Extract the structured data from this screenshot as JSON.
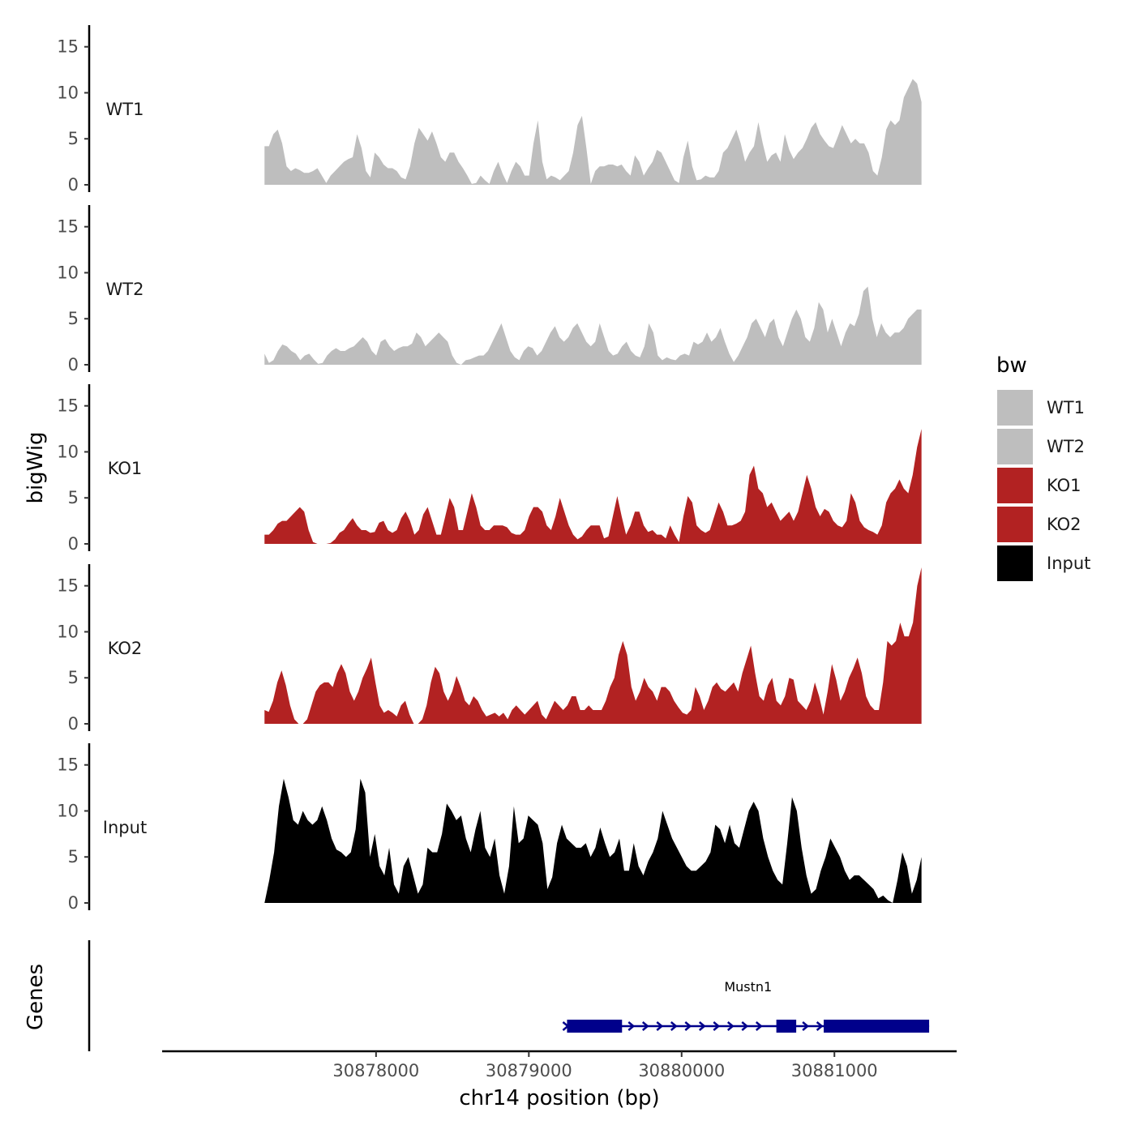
{
  "chart_data": {
    "type": "area",
    "x_axis": {
      "label": "chr14 position (bp)",
      "range": [
        30876600,
        30881800
      ],
      "ticks": [
        30878000,
        30879000,
        30880000,
        30881000
      ]
    },
    "y_axis": {
      "label": "bigWig",
      "range": [
        0,
        17
      ],
      "ticks": [
        0,
        5,
        10,
        15
      ]
    },
    "genes_label": "Genes",
    "x_data_start": 30877270,
    "x_data_end": 30881570,
    "legend": {
      "title": "bw",
      "entries": [
        {
          "name": "WT1",
          "color": "#bebebe"
        },
        {
          "name": "WT2",
          "color": "#bebebe"
        },
        {
          "name": "KO1",
          "color": "#b22222"
        },
        {
          "name": "KO2",
          "color": "#b22222"
        },
        {
          "name": "Input",
          "color": "#000000"
        }
      ]
    },
    "series": [
      {
        "name": "WT1",
        "color": "#bebebe",
        "values": [
          4.2,
          4.2,
          5.5,
          6,
          4.5,
          2,
          1.5,
          1.8,
          1.6,
          1.3,
          1.3,
          1.5,
          1.8,
          1,
          0.2,
          1,
          1.5,
          2,
          2.5,
          2.8,
          3,
          5.5,
          4,
          1.5,
          0.8,
          3.5,
          3,
          2.2,
          1.8,
          1.8,
          1.5,
          0.8,
          0.6,
          2,
          4.5,
          6.2,
          5.5,
          4.8,
          5.8,
          4.5,
          3,
          2.5,
          3.5,
          3.5,
          2.5,
          1.8,
          1,
          0.1,
          0.2,
          1,
          0.5,
          0.1,
          1.5,
          2.5,
          1.2,
          0.2,
          1.5,
          2.5,
          2,
          1,
          1,
          4.5,
          7,
          2.5,
          0.6,
          1,
          0.8,
          0.5,
          1,
          1.5,
          3.5,
          6.5,
          7.5,
          4,
          0.1,
          1.5,
          2,
          2,
          2.2,
          2.2,
          2,
          2.2,
          1.5,
          1,
          3.2,
          2.5,
          1,
          1.8,
          2.5,
          3.8,
          3.5,
          2.5,
          1.5,
          0.5,
          0.2,
          3,
          4.8,
          2,
          0.5,
          0.6,
          1,
          0.8,
          0.8,
          1.5,
          3.5,
          4,
          5,
          6,
          4.5,
          2.5,
          3.5,
          4.2,
          6.8,
          4.5,
          2.5,
          3.2,
          3.5,
          2.5,
          5.5,
          3.8,
          2.8,
          3.5,
          4,
          5,
          6.2,
          6.8,
          5.5,
          4.8,
          4.2,
          4,
          5.2,
          6.5,
          5.5,
          4.5,
          5,
          4.5,
          4.5,
          3.5,
          1.5,
          1,
          3,
          6,
          7,
          6.5,
          7,
          9.5,
          10.5,
          11.5,
          11,
          9
        ],
        "x_start": 30877270,
        "x_end": 30881570
      },
      {
        "name": "WT2",
        "color": "#bebebe",
        "values": [
          1.2,
          0.2,
          0.5,
          1.5,
          2.2,
          2,
          1.5,
          1.2,
          0.5,
          1,
          1.2,
          0.6,
          0.1,
          0.2,
          1,
          1.5,
          1.8,
          1.5,
          1.5,
          1.8,
          2,
          2.5,
          3,
          2.5,
          1.5,
          1,
          2.5,
          2.8,
          2,
          1.5,
          1.8,
          2,
          2,
          2.3,
          3.5,
          3,
          2,
          2.5,
          3,
          3.5,
          3,
          2.5,
          1,
          0.2,
          0,
          0.5,
          0.6,
          0.8,
          1,
          1,
          1.5,
          2.5,
          3.5,
          4.5,
          3,
          1.5,
          0.8,
          0.5,
          1.5,
          2,
          1.8,
          1,
          1.5,
          2.5,
          3.5,
          4.2,
          3,
          2.5,
          3,
          4,
          4.5,
          3.5,
          2.5,
          2,
          2.5,
          4.5,
          3,
          1.5,
          1,
          1.2,
          2,
          2.5,
          1.5,
          1,
          0.8,
          2,
          4.5,
          3.5,
          1,
          0.5,
          0.8,
          0.6,
          0.5,
          1,
          1.2,
          1,
          2.5,
          2.2,
          2.5,
          3.5,
          2.5,
          3,
          4,
          2.5,
          1.2,
          0.3,
          1,
          2,
          3,
          4.5,
          5,
          4,
          3,
          4.5,
          5,
          3,
          2,
          3.5,
          5,
          6,
          5,
          3,
          2.5,
          4,
          6.8,
          6,
          3.5,
          5,
          3.5,
          2,
          3.5,
          4.5,
          4.2,
          5.5,
          8,
          8.5,
          5,
          3,
          4.5,
          3.5,
          3,
          3.5,
          3.5,
          4,
          5,
          5.5,
          6,
          6
        ],
        "x_start": 30877270,
        "x_end": 30881570
      },
      {
        "name": "KO1",
        "color": "#b22222",
        "values": [
          1,
          1,
          1.5,
          2.2,
          2.5,
          2.5,
          3,
          3.5,
          4,
          3.5,
          1.5,
          0.2,
          0,
          0,
          0,
          0.1,
          0.5,
          1.2,
          1.5,
          2.2,
          2.8,
          2,
          1.5,
          1.5,
          1.2,
          1.3,
          2.3,
          2.5,
          1.5,
          1.2,
          1.5,
          2.8,
          3.5,
          2.5,
          1,
          1.5,
          3.2,
          4,
          2.5,
          1,
          1,
          3,
          5,
          4,
          1.5,
          1.5,
          3.5,
          5.5,
          4,
          2,
          1.5,
          1.5,
          2,
          2,
          2,
          1.8,
          1.2,
          1,
          1,
          1.5,
          3,
          4,
          4,
          3.5,
          2,
          1.5,
          3,
          5,
          3.5,
          2,
          1,
          0.5,
          0.8,
          1.5,
          2,
          2,
          2,
          0.6,
          0.8,
          3,
          5.2,
          3,
          1,
          2,
          3.5,
          3.5,
          2,
          1.3,
          1.5,
          1,
          1,
          0.6,
          2,
          1,
          0.2,
          3,
          5.2,
          4.5,
          2,
          1.5,
          1.2,
          1.5,
          3,
          4.5,
          3.5,
          2,
          2,
          2.2,
          2.5,
          3.5,
          7.5,
          8.5,
          6,
          5.5,
          4,
          4.5,
          3.5,
          2.5,
          3,
          3.5,
          2.5,
          3.5,
          5.5,
          7.5,
          6,
          4,
          3,
          3.8,
          3.5,
          2.5,
          2,
          1.8,
          2.5,
          5.5,
          4.5,
          2.5,
          1.8,
          1.5,
          1.3,
          1,
          2,
          4.5,
          5.5,
          6,
          7,
          6,
          5.5,
          7.5,
          10.5,
          12.5
        ],
        "x_start": 30877270,
        "x_end": 30881570
      },
      {
        "name": "KO2",
        "color": "#b22222",
        "values": [
          1.5,
          1.3,
          2.5,
          4.5,
          5.8,
          4.2,
          2,
          0.5,
          0,
          0,
          0.5,
          2,
          3.5,
          4.2,
          4.5,
          4.5,
          4,
          5.5,
          6.5,
          5.5,
          3.5,
          2.5,
          3.5,
          5,
          6,
          7.2,
          4.5,
          2,
          1.2,
          1.5,
          1.2,
          0.8,
          2,
          2.5,
          1,
          0,
          0,
          0.5,
          2,
          4.5,
          6.2,
          5.5,
          3.5,
          2.5,
          3.5,
          5.2,
          4,
          2.5,
          2,
          3,
          2.5,
          1.5,
          0.8,
          1,
          1.2,
          0.8,
          1.2,
          0.5,
          1.5,
          2,
          1.5,
          1,
          1.5,
          2,
          2.5,
          1,
          0.5,
          1.5,
          2.5,
          2,
          1.5,
          2,
          3,
          3,
          1.5,
          1.5,
          2,
          1.5,
          1.5,
          1.5,
          2.5,
          4,
          5,
          7.5,
          9,
          7.5,
          4,
          2.5,
          3.5,
          5,
          4,
          3.5,
          2.5,
          4,
          4,
          3.5,
          2.5,
          1.8,
          1.2,
          1,
          1.5,
          4,
          3,
          1.5,
          2.5,
          4,
          4.5,
          3.8,
          3.5,
          4,
          4.5,
          3.5,
          5.5,
          7,
          8.5,
          5.5,
          3,
          2.5,
          4.2,
          5,
          2.5,
          2,
          3,
          5,
          4.8,
          2.5,
          2,
          1.5,
          2.5,
          4.5,
          3,
          1,
          3.5,
          6.5,
          4.8,
          2.5,
          3.5,
          5,
          6,
          7.2,
          5.5,
          3,
          2,
          1.5,
          1.5,
          4.5,
          9,
          8.5,
          9,
          11,
          9.5,
          9.5,
          11,
          15,
          17
        ],
        "x_start": 30877270,
        "x_end": 30881570
      },
      {
        "name": "Input",
        "color": "#000000",
        "values": [
          0,
          2.5,
          5.5,
          10.5,
          13.5,
          11.5,
          9,
          8.5,
          10,
          9,
          8.5,
          9,
          10.5,
          9,
          7,
          5.8,
          5.5,
          5,
          5.5,
          8,
          13.5,
          12,
          5,
          7.5,
          4,
          3,
          6,
          2,
          1,
          4,
          5,
          3,
          1,
          2,
          6,
          5.5,
          5.5,
          7.5,
          10.8,
          10,
          9,
          9.5,
          7,
          5.5,
          8,
          10,
          6,
          5,
          7,
          3,
          1,
          4,
          10.5,
          6.5,
          7,
          9.5,
          9,
          8.5,
          6.5,
          1.5,
          2.8,
          6.5,
          8.5,
          7,
          6.5,
          6,
          6,
          6.5,
          5,
          6,
          8.2,
          6.5,
          5,
          5.5,
          7,
          3.5,
          3.5,
          6.5,
          4,
          3,
          4.5,
          5.5,
          7,
          10,
          8.5,
          7,
          6,
          5,
          4,
          3.5,
          3.5,
          4,
          4.5,
          5.5,
          8.5,
          8,
          6.5,
          8.5,
          6.5,
          6,
          8,
          10,
          11,
          10,
          7,
          5,
          3.5,
          2.5,
          2,
          6.5,
          11.5,
          10,
          6,
          3,
          1,
          1.5,
          3.5,
          5,
          7,
          6,
          5,
          3.5,
          2.5,
          3,
          3,
          2.5,
          2,
          1.5,
          0.5,
          0.8,
          0.3,
          0,
          2.5,
          5.5,
          4,
          1,
          2.5,
          5
        ],
        "x_start": 30877270,
        "x_end": 30881570
      }
    ],
    "gene": {
      "name": "Mustn1",
      "strand": "+",
      "start": 30879250,
      "end": 30881620,
      "exons": [
        [
          30879250,
          30879610
        ],
        [
          30880620,
          30880750
        ],
        [
          30880930,
          30881620
        ]
      ]
    }
  }
}
